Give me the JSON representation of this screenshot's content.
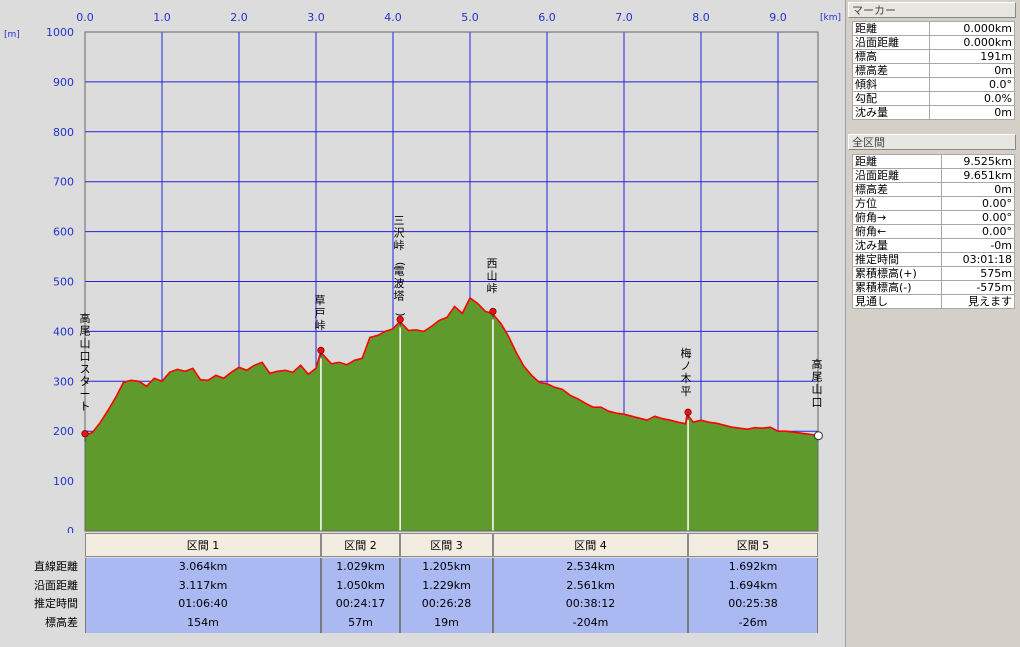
{
  "chart_data": {
    "type": "area",
    "title": "",
    "xlabel_unit": "[km]",
    "ylabel_unit": "[m]",
    "xlim": [
      0,
      9.525
    ],
    "ylim": [
      0,
      1000
    ],
    "x_ticks": [
      "0.0",
      "1.0",
      "2.0",
      "3.0",
      "4.0",
      "5.0",
      "6.0",
      "7.0",
      "8.0",
      "9.0"
    ],
    "y_ticks": [
      "0",
      "100",
      "200",
      "300",
      "400",
      "500",
      "600",
      "700",
      "800",
      "900",
      "1000"
    ],
    "grid": true,
    "colors": {
      "fill": "#5f9a2c",
      "line": "#ff0000",
      "grid": "#2222dd",
      "plot_bg": "#dcdcdc"
    },
    "profile": [
      [
        0.0,
        191
      ],
      [
        0.1,
        198
      ],
      [
        0.2,
        218
      ],
      [
        0.3,
        242
      ],
      [
        0.4,
        268
      ],
      [
        0.5,
        298
      ],
      [
        0.6,
        302
      ],
      [
        0.7,
        300
      ],
      [
        0.8,
        290
      ],
      [
        0.9,
        306
      ],
      [
        1.0,
        300
      ],
      [
        1.1,
        318
      ],
      [
        1.2,
        324
      ],
      [
        1.3,
        320
      ],
      [
        1.4,
        326
      ],
      [
        1.5,
        303
      ],
      [
        1.6,
        302
      ],
      [
        1.7,
        312
      ],
      [
        1.8,
        306
      ],
      [
        1.9,
        318
      ],
      [
        2.0,
        328
      ],
      [
        2.1,
        322
      ],
      [
        2.2,
        332
      ],
      [
        2.3,
        338
      ],
      [
        2.4,
        316
      ],
      [
        2.5,
        320
      ],
      [
        2.6,
        322
      ],
      [
        2.7,
        318
      ],
      [
        2.8,
        332
      ],
      [
        2.9,
        314
      ],
      [
        3.0,
        326
      ],
      [
        3.06,
        358
      ],
      [
        3.1,
        352
      ],
      [
        3.2,
        335
      ],
      [
        3.3,
        338
      ],
      [
        3.4,
        333
      ],
      [
        3.5,
        342
      ],
      [
        3.6,
        346
      ],
      [
        3.7,
        388
      ],
      [
        3.8,
        392
      ],
      [
        3.9,
        400
      ],
      [
        4.0,
        405
      ],
      [
        4.09,
        420
      ],
      [
        4.2,
        402
      ],
      [
        4.3,
        403
      ],
      [
        4.4,
        400
      ],
      [
        4.5,
        410
      ],
      [
        4.6,
        422
      ],
      [
        4.7,
        428
      ],
      [
        4.8,
        450
      ],
      [
        4.9,
        436
      ],
      [
        5.0,
        467
      ],
      [
        5.1,
        456
      ],
      [
        5.2,
        440
      ],
      [
        5.29,
        436
      ],
      [
        5.4,
        416
      ],
      [
        5.5,
        390
      ],
      [
        5.6,
        358
      ],
      [
        5.7,
        330
      ],
      [
        5.8,
        312
      ],
      [
        5.9,
        298
      ],
      [
        6.0,
        295
      ],
      [
        6.1,
        288
      ],
      [
        6.2,
        284
      ],
      [
        6.3,
        272
      ],
      [
        6.4,
        265
      ],
      [
        6.5,
        256
      ],
      [
        6.6,
        248
      ],
      [
        6.7,
        248
      ],
      [
        6.8,
        240
      ],
      [
        6.9,
        236
      ],
      [
        7.0,
        234
      ],
      [
        7.1,
        230
      ],
      [
        7.2,
        226
      ],
      [
        7.3,
        222
      ],
      [
        7.4,
        230
      ],
      [
        7.5,
        225
      ],
      [
        7.6,
        222
      ],
      [
        7.7,
        218
      ],
      [
        7.8,
        215
      ],
      [
        7.82,
        234
      ],
      [
        7.9,
        218
      ],
      [
        8.0,
        222
      ],
      [
        8.1,
        218
      ],
      [
        8.2,
        216
      ],
      [
        8.3,
        212
      ],
      [
        8.4,
        208
      ],
      [
        8.5,
        206
      ],
      [
        8.6,
        204
      ],
      [
        8.7,
        207
      ],
      [
        8.8,
        206
      ],
      [
        8.9,
        208
      ],
      [
        9.0,
        200
      ],
      [
        9.1,
        200
      ],
      [
        9.2,
        198
      ],
      [
        9.3,
        196
      ],
      [
        9.4,
        194
      ],
      [
        9.525,
        191
      ]
    ],
    "waypoints": [
      {
        "name": "高尾山口スタート",
        "x": 0.0,
        "y": 191,
        "marker": "red",
        "line": false
      },
      {
        "name": "草戸峠",
        "x": 3.064,
        "y": 358,
        "marker": "red",
        "line": true
      },
      {
        "name": "三沢峠(電波塔)",
        "x": 4.093,
        "y": 420,
        "marker": "red",
        "line": true
      },
      {
        "name": "西山峠",
        "x": 5.298,
        "y": 436,
        "marker": "red",
        "line": true
      },
      {
        "name": "梅ノ木平",
        "x": 7.832,
        "y": 234,
        "marker": "red",
        "line": true
      },
      {
        "name": "高尾山口",
        "x": 9.525,
        "y": 191,
        "marker": "white",
        "line": false
      }
    ]
  },
  "marker_panel": {
    "header": "マーカー",
    "rows": [
      {
        "label": "距離",
        "value": "0.000km"
      },
      {
        "label": "沿面距離",
        "value": "0.000km"
      },
      {
        "label": "標高",
        "value": "191m"
      },
      {
        "label": "標高差",
        "value": "0m"
      },
      {
        "label": "傾斜",
        "value": "0.0°"
      },
      {
        "label": "勾配",
        "value": "0.0%"
      },
      {
        "label": "沈み量",
        "value": "0m"
      }
    ]
  },
  "total_panel": {
    "header": "全区間",
    "rows": [
      {
        "label": "距離",
        "value": "9.525km"
      },
      {
        "label": "沿面距離",
        "value": "9.651km"
      },
      {
        "label": "標高差",
        "value": "0m"
      },
      {
        "label": "方位",
        "value": "0.00°"
      },
      {
        "label": "俯角→",
        "value": "0.00°"
      },
      {
        "label": "俯角←",
        "value": "0.00°"
      },
      {
        "label": "沈み量",
        "value": "-0m"
      },
      {
        "label": "推定時間",
        "value": "03:01:18"
      },
      {
        "label": "累積標高(+)",
        "value": "575m"
      },
      {
        "label": "累積標高(-)",
        "value": "-575m"
      },
      {
        "label": "見通し",
        "value": "見えます"
      }
    ]
  },
  "sections": {
    "row_labels": [
      "直線距離",
      "沿面距離",
      "推定時間",
      "標高差"
    ],
    "items": [
      {
        "name": "区間 1",
        "start": 0.0,
        "end": 3.064,
        "straight": "3.064km",
        "surface": "3.117km",
        "time": "01:06:40",
        "elev": "154m"
      },
      {
        "name": "区間 2",
        "start": 3.064,
        "end": 4.093,
        "straight": "1.029km",
        "surface": "1.050km",
        "time": "00:24:17",
        "elev": "57m"
      },
      {
        "name": "区間 3",
        "start": 4.093,
        "end": 5.298,
        "straight": "1.205km",
        "surface": "1.229km",
        "time": "00:26:28",
        "elev": "19m"
      },
      {
        "name": "区間 4",
        "start": 5.298,
        "end": 7.832,
        "straight": "2.534km",
        "surface": "2.561km",
        "time": "00:38:12",
        "elev": "-204m"
      },
      {
        "name": "区間 5",
        "start": 7.832,
        "end": 9.525,
        "straight": "1.692km",
        "surface": "1.694km",
        "time": "00:25:38",
        "elev": "-26m"
      }
    ]
  }
}
